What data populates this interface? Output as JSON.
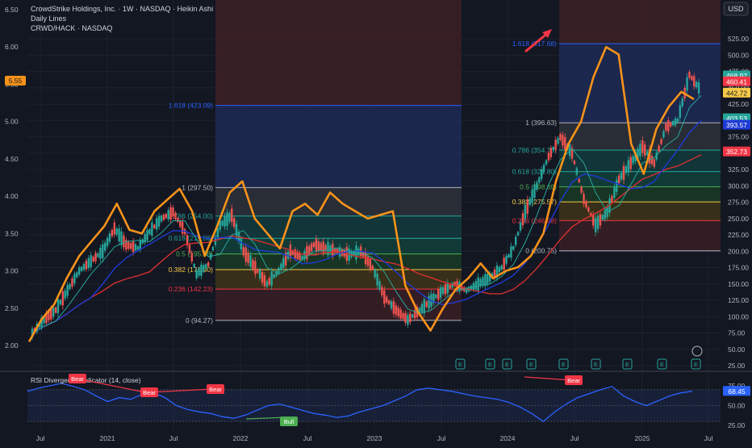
{
  "header": {
    "line1": "CrowdStrike Holdings, Inc. · 1W · NASDAQ · Heikin Ashi",
    "line2": "Daily Lines",
    "line3": "CRWD/HACK · NASDAQ"
  },
  "usd_label": "USD",
  "colors": {
    "background": "#131722",
    "orange_line": "#f7931a",
    "red_ma": "#d32f2f",
    "blue_ma": "#1e3ad4",
    "green_ma": "#26a69a",
    "bear": "#f23645",
    "bull": "#4caf50",
    "rsi": "#2962ff"
  },
  "chart_data": {
    "type": "line",
    "x_ticks": [
      "Jul",
      "2021",
      "Jul",
      "2022",
      "Jul",
      "2023",
      "Jul",
      "2024",
      "Jul",
      "2025",
      "Jul"
    ],
    "left_axis": {
      "ticks": [
        "6.50",
        "6.00",
        "5.50",
        "5.00",
        "4.50",
        "4.00",
        "3.50",
        "3.00",
        "2.50",
        "2.00"
      ],
      "current": "5.55"
    },
    "right_axis": {
      "ticks": [
        "525.00",
        "500.00",
        "475.00",
        "450.00",
        "425.00",
        "400.00",
        "375.00",
        "350.00",
        "325.00",
        "300.00",
        "275.00",
        "250.00",
        "225.00",
        "200.00",
        "175.00",
        "150.00",
        "125.00",
        "100.00",
        "75.00",
        "50.00",
        "25.00"
      ],
      "ylim": [
        25,
        540
      ],
      "price_labels": [
        {
          "text": "468.97",
          "value": 469,
          "color": "#26a69a"
        },
        {
          "text": "460.41",
          "value": 460,
          "color": "#f23645"
        },
        {
          "text": "442.72",
          "value": 442.7,
          "color": "#f7c948"
        },
        {
          "text": "403.53",
          "value": 403.5,
          "color": "#26a69a"
        },
        {
          "text": "393.57",
          "value": 393.6,
          "color": "#1e3ad4"
        },
        {
          "text": "352.73",
          "value": 352.7,
          "color": "#f23645"
        }
      ]
    },
    "fib_sets": [
      {
        "levels": [
          {
            "label": "1.618 (423.09)",
            "value": 423.09,
            "color": "#2962ff"
          },
          {
            "label": "1 (297.50)",
            "value": 297.5,
            "color": "#b2b5be"
          },
          {
            "label": "0.786 (254.00)",
            "value": 254.0,
            "color": "#26a69a"
          },
          {
            "label": "0.618 (219.86)",
            "value": 219.86,
            "color": "#26a69a"
          },
          {
            "label": "0.5 (195.88)",
            "value": 195.88,
            "color": "#4caf50"
          },
          {
            "label": "0.382 (171.90)",
            "value": 171.9,
            "color": "#f7c948"
          },
          {
            "label": "0.236 (142.23)",
            "value": 142.23,
            "color": "#f23645"
          },
          {
            "label": "0 (94.27)",
            "value": 94.27,
            "color": "#b2b5be"
          }
        ]
      },
      {
        "levels": [
          {
            "label": "1.618 (517.68)",
            "value": 517.68,
            "color": "#2962ff"
          },
          {
            "label": "1 (396.63)",
            "value": 396.63,
            "color": "#b2b5be"
          },
          {
            "label": "0.786 (354.70)",
            "value": 354.7,
            "color": "#26a69a"
          },
          {
            "label": "0.618 (321.80)",
            "value": 321.8,
            "color": "#26a69a"
          },
          {
            "label": "0.5 (298.69)",
            "value": 298.69,
            "color": "#4caf50"
          },
          {
            "label": "0.382 (275.57)",
            "value": 275.57,
            "color": "#f7c948"
          },
          {
            "label": "0.236 (246.98)",
            "value": 246.98,
            "color": "#f23645"
          },
          {
            "label": "0 (200.75)",
            "value": 200.75,
            "color": "#b2b5be"
          }
        ]
      }
    ],
    "ratio_series": [
      2.05,
      2.35,
      2.55,
      2.9,
      3.2,
      3.4,
      3.6,
      3.9,
      3.55,
      3.5,
      3.8,
      3.95,
      4.1,
      3.8,
      3.2,
      3.6,
      4.05,
      4.2,
      3.7,
      3.5,
      3.3,
      3.8,
      3.9,
      3.75,
      4.05,
      3.9,
      3.8,
      3.7,
      3.75,
      3.8,
      2.8,
      2.45,
      2.2,
      2.5,
      2.75,
      2.9,
      3.1,
      2.9,
      3.0,
      3.05,
      3.2,
      3.5,
      4.2,
      4.7,
      5.0,
      5.6,
      6.0,
      5.9,
      4.7,
      4.3,
      4.9,
      5.2,
      5.4,
      5.3
    ],
    "price_series": [
      75,
      95,
      110,
      140,
      170,
      185,
      200,
      235,
      210,
      205,
      230,
      250,
      260,
      230,
      165,
      180,
      240,
      255,
      200,
      175,
      150,
      170,
      200,
      190,
      210,
      205,
      200,
      195,
      200,
      175,
      130,
      110,
      95,
      110,
      125,
      140,
      150,
      140,
      150,
      160,
      175,
      205,
      260,
      300,
      345,
      375,
      350,
      280,
      240,
      260,
      310,
      335,
      360,
      335,
      390,
      400,
      470,
      445
    ],
    "rsi": {
      "title": "RSI Divergence Indicator (14, close)",
      "ticks": [
        "75.00",
        "50.00",
        "25.00"
      ],
      "current": "68.45",
      "ylim": [
        20,
        85
      ],
      "values": [
        68,
        72,
        75,
        78,
        74,
        70,
        62,
        55,
        60,
        58,
        64,
        66,
        60,
        50,
        45,
        42,
        40,
        36,
        34,
        38,
        44,
        50,
        52,
        48,
        44,
        40,
        38,
        35,
        37,
        42,
        46,
        50,
        56,
        62,
        70,
        72,
        70,
        68,
        65,
        62,
        60,
        58,
        54,
        48,
        40,
        30,
        42,
        52,
        60,
        65,
        70,
        74,
        62,
        55,
        50,
        56,
        62,
        66,
        68
      ],
      "markers": [
        {
          "label": "Bear",
          "type": "bear"
        },
        {
          "label": "Bear",
          "type": "bear"
        },
        {
          "label": "Bear",
          "type": "bear"
        },
        {
          "label": "Bull",
          "type": "bull"
        },
        {
          "label": "Bear",
          "type": "bear"
        }
      ]
    },
    "earnings_marker": "E"
  }
}
